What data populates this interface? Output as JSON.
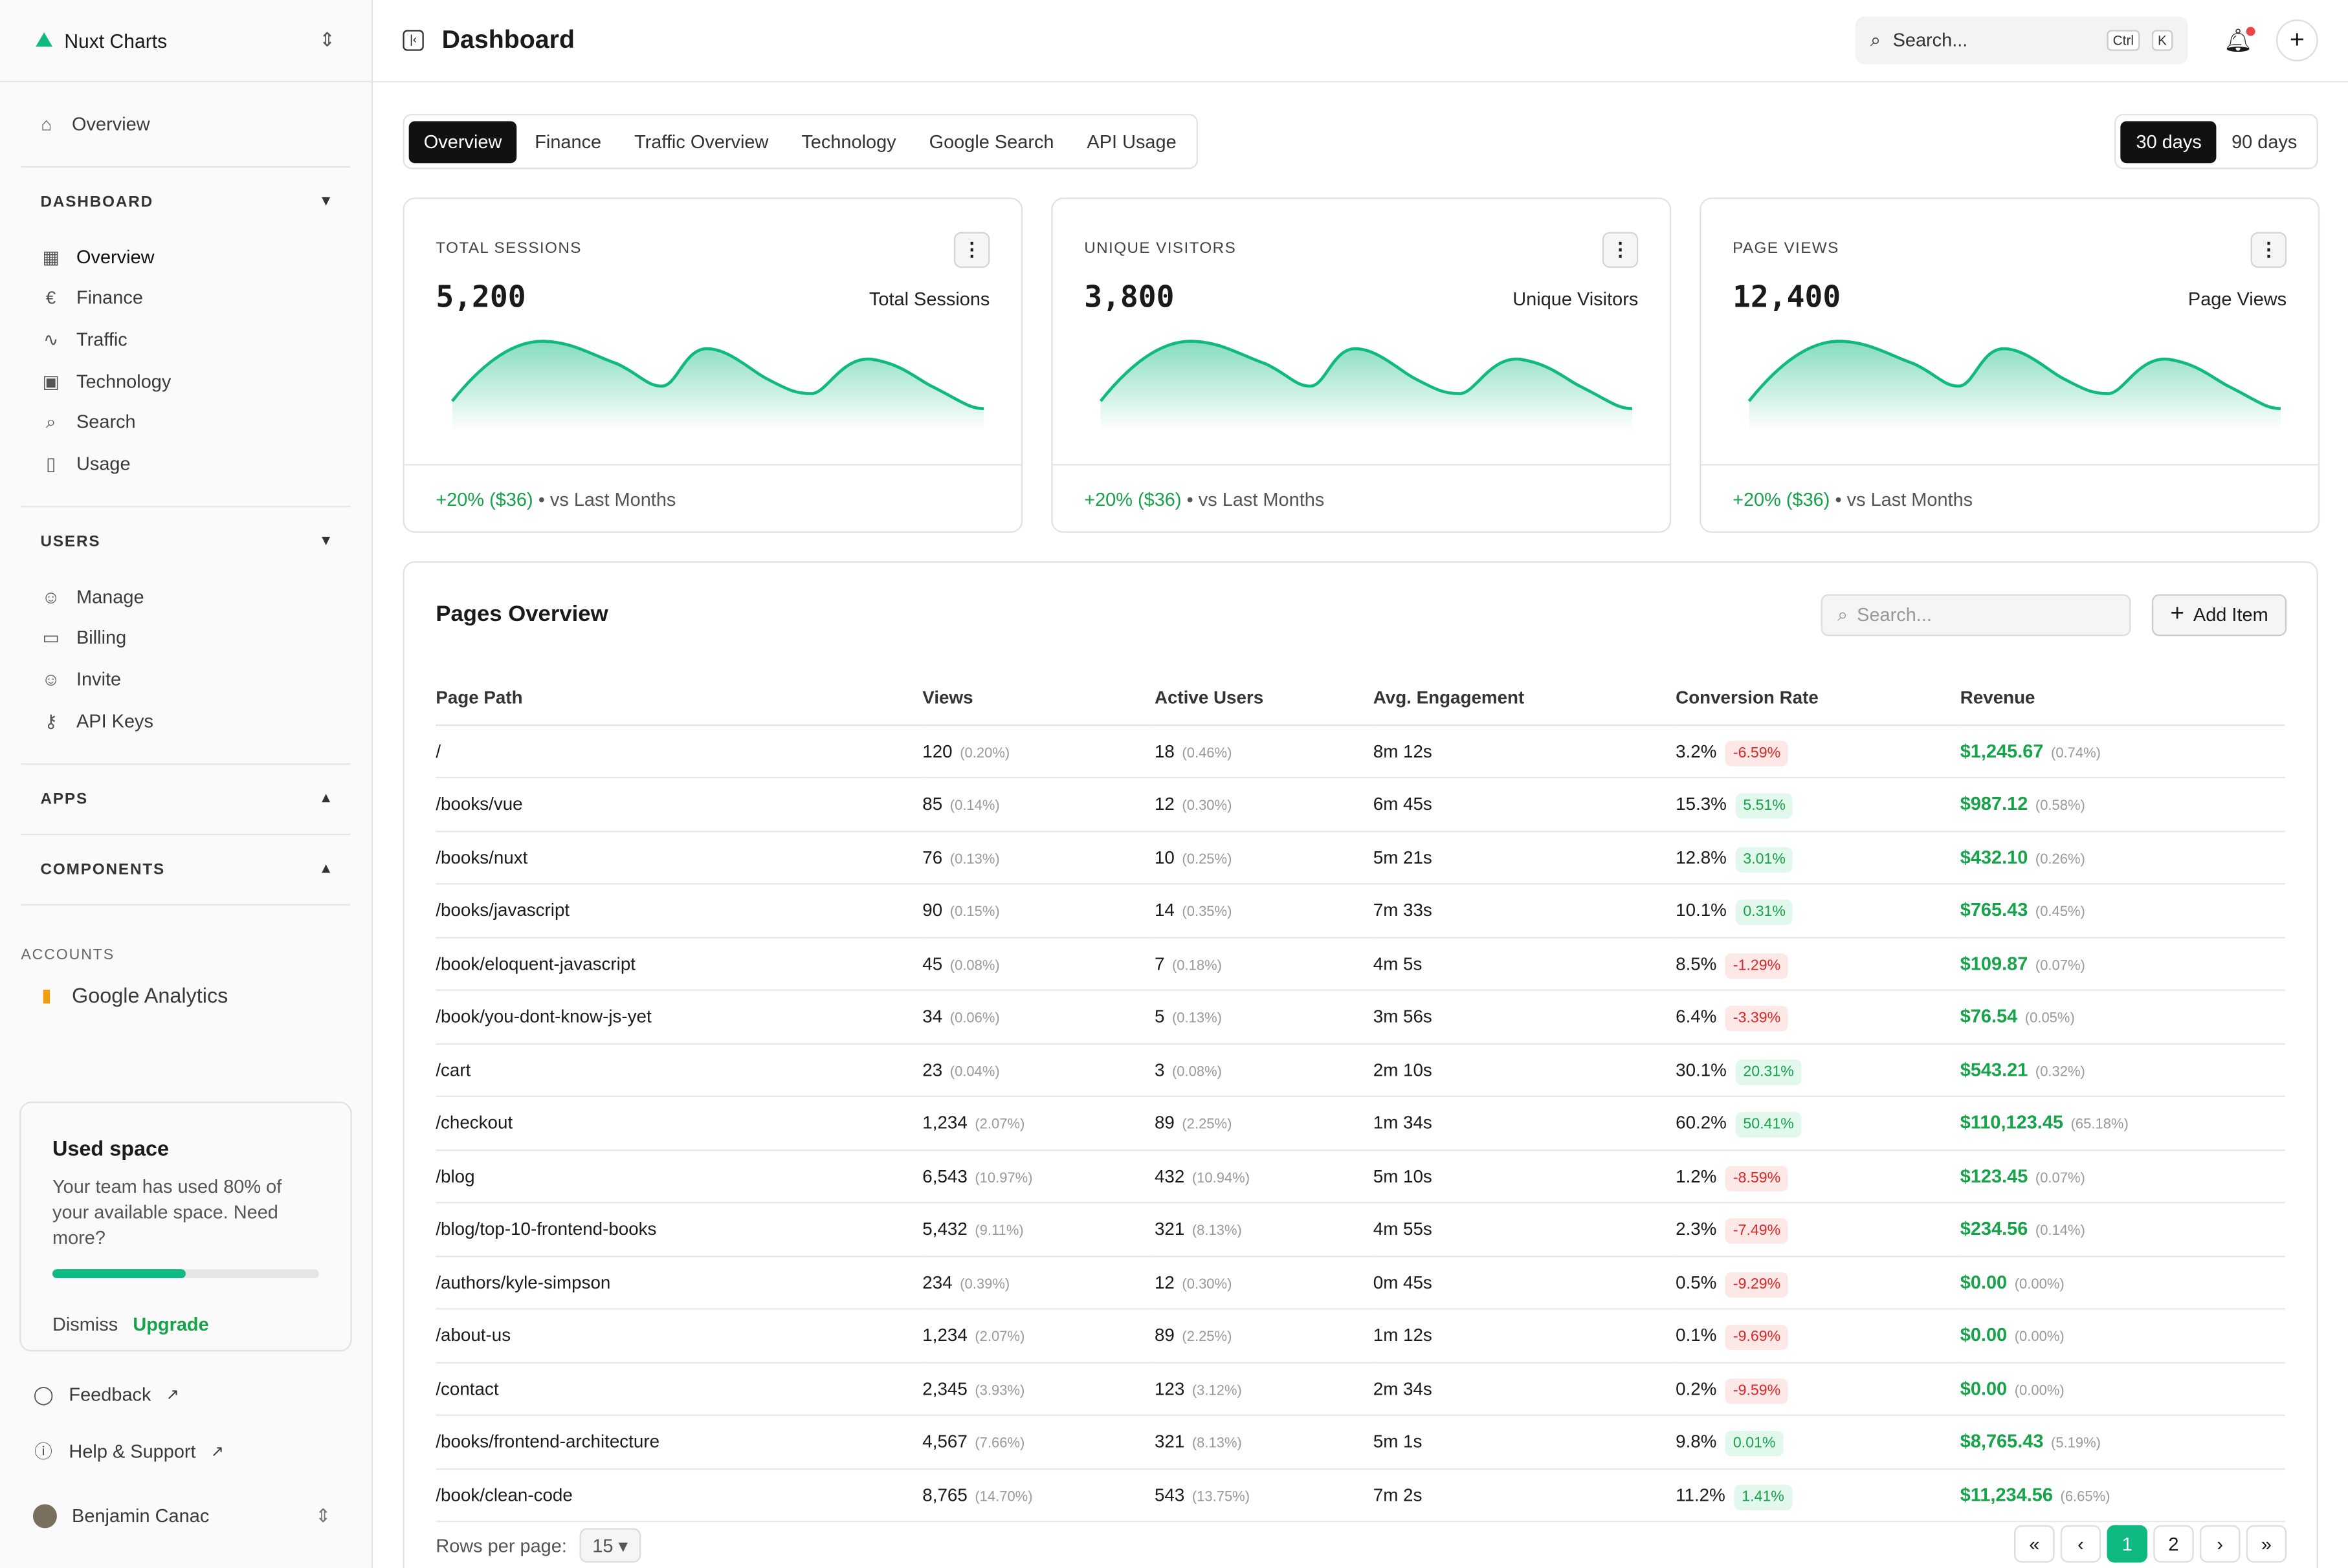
{
  "app": {
    "name": "Nuxt Charts",
    "title": "Dashboard"
  },
  "sidebar": {
    "top_item": "Overview",
    "dashboard": {
      "label": "DASHBOARD",
      "items": [
        {
          "label": "Overview",
          "icon": "layout-icon"
        },
        {
          "label": "Finance",
          "icon": "euro-icon"
        },
        {
          "label": "Traffic",
          "icon": "activity-icon"
        },
        {
          "label": "Technology",
          "icon": "cpu-icon"
        },
        {
          "label": "Search",
          "icon": "search-icon"
        },
        {
          "label": "Usage",
          "icon": "phone-icon"
        }
      ]
    },
    "users": {
      "label": "USERS",
      "items": [
        {
          "label": "Manage",
          "icon": "user-cog-icon"
        },
        {
          "label": "Billing",
          "icon": "credit-card-icon"
        },
        {
          "label": "Invite",
          "icon": "user-plus-icon"
        },
        {
          "label": "API Keys",
          "icon": "key-icon"
        }
      ]
    },
    "apps": "APPS",
    "components": "COMPONENTS",
    "accounts": {
      "label": "ACCOUNTS",
      "item": "Google Analytics"
    },
    "used_space": {
      "title": "Used space",
      "text": "Your team has used 80% of your available space. Need more?",
      "progress": 0.5,
      "dismiss": "Dismiss",
      "upgrade": "Upgrade"
    },
    "feedback": "Feedback",
    "help": "Help & Support",
    "user": "Benjamin Canac"
  },
  "header": {
    "search": "Search...",
    "kbd1": "Ctrl",
    "kbd2": "K"
  },
  "tabs": [
    "Overview",
    "Finance",
    "Traffic Overview",
    "Technology",
    "Google Search",
    "API Usage"
  ],
  "ranges": [
    "30 days",
    "90 days"
  ],
  "kpis": [
    {
      "label": "TOTAL SESSIONS",
      "value": "5,200",
      "sub": "Total Sessions",
      "change": "+20% ($36)",
      "vs": "vs Last Months"
    },
    {
      "label": "UNIQUE VISITORS",
      "value": "3,800",
      "sub": "Unique Visitors",
      "change": "+20% ($36)",
      "vs": "vs Last Months"
    },
    {
      "label": "PAGE VIEWS",
      "value": "12,400",
      "sub": "Page Views",
      "change": "+20% ($36)",
      "vs": "vs Last Months"
    }
  ],
  "accent": "#10b981",
  "pages": {
    "title": "Pages Overview",
    "search_placeholder": "Search...",
    "add": "Add Item",
    "columns": [
      "Page Path",
      "Views",
      "Active Users",
      "Avg. Engagement",
      "Conversion Rate",
      "Revenue"
    ],
    "rows": [
      [
        "/",
        "120",
        "(0.20%)",
        "18",
        "(0.46%)",
        "8m 12s",
        "3.2%",
        "-6.59%",
        "$1,245.67",
        "(0.74%)"
      ],
      [
        "/books/vue",
        "85",
        "(0.14%)",
        "12",
        "(0.30%)",
        "6m 45s",
        "15.3%",
        "5.51%",
        "$987.12",
        "(0.58%)"
      ],
      [
        "/books/nuxt",
        "76",
        "(0.13%)",
        "10",
        "(0.25%)",
        "5m 21s",
        "12.8%",
        "3.01%",
        "$432.10",
        "(0.26%)"
      ],
      [
        "/books/javascript",
        "90",
        "(0.15%)",
        "14",
        "(0.35%)",
        "7m 33s",
        "10.1%",
        "0.31%",
        "$765.43",
        "(0.45%)"
      ],
      [
        "/book/eloquent-javascript",
        "45",
        "(0.08%)",
        "7",
        "(0.18%)",
        "4m 5s",
        "8.5%",
        "-1.29%",
        "$109.87",
        "(0.07%)"
      ],
      [
        "/book/you-dont-know-js-yet",
        "34",
        "(0.06%)",
        "5",
        "(0.13%)",
        "3m 56s",
        "6.4%",
        "-3.39%",
        "$76.54",
        "(0.05%)"
      ],
      [
        "/cart",
        "23",
        "(0.04%)",
        "3",
        "(0.08%)",
        "2m 10s",
        "30.1%",
        "20.31%",
        "$543.21",
        "(0.32%)"
      ],
      [
        "/checkout",
        "1,234",
        "(2.07%)",
        "89",
        "(2.25%)",
        "1m 34s",
        "60.2%",
        "50.41%",
        "$110,123.45",
        "(65.18%)"
      ],
      [
        "/blog",
        "6,543",
        "(10.97%)",
        "432",
        "(10.94%)",
        "5m 10s",
        "1.2%",
        "-8.59%",
        "$123.45",
        "(0.07%)"
      ],
      [
        "/blog/top-10-frontend-books",
        "5,432",
        "(9.11%)",
        "321",
        "(8.13%)",
        "4m 55s",
        "2.3%",
        "-7.49%",
        "$234.56",
        "(0.14%)"
      ],
      [
        "/authors/kyle-simpson",
        "234",
        "(0.39%)",
        "12",
        "(0.30%)",
        "0m 45s",
        "0.5%",
        "-9.29%",
        "$0.00",
        "(0.00%)"
      ],
      [
        "/about-us",
        "1,234",
        "(2.07%)",
        "89",
        "(2.25%)",
        "1m 12s",
        "0.1%",
        "-9.69%",
        "$0.00",
        "(0.00%)"
      ],
      [
        "/contact",
        "2,345",
        "(3.93%)",
        "123",
        "(3.12%)",
        "2m 34s",
        "0.2%",
        "-9.59%",
        "$0.00",
        "(0.00%)"
      ],
      [
        "/books/frontend-architecture",
        "4,567",
        "(7.66%)",
        "321",
        "(8.13%)",
        "5m 1s",
        "9.8%",
        "0.01%",
        "$8,765.43",
        "(5.19%)"
      ],
      [
        "/book/clean-code",
        "8,765",
        "(14.70%)",
        "543",
        "(13.75%)",
        "7m 2s",
        "11.2%",
        "1.41%",
        "$11,234.56",
        "(6.65%)"
      ]
    ],
    "rows_per_page_label": "Rows per page:",
    "rows_per_page": "15",
    "pagination": [
      "«",
      "‹",
      "1",
      "2",
      "›",
      "»"
    ],
    "current_page": "1"
  }
}
